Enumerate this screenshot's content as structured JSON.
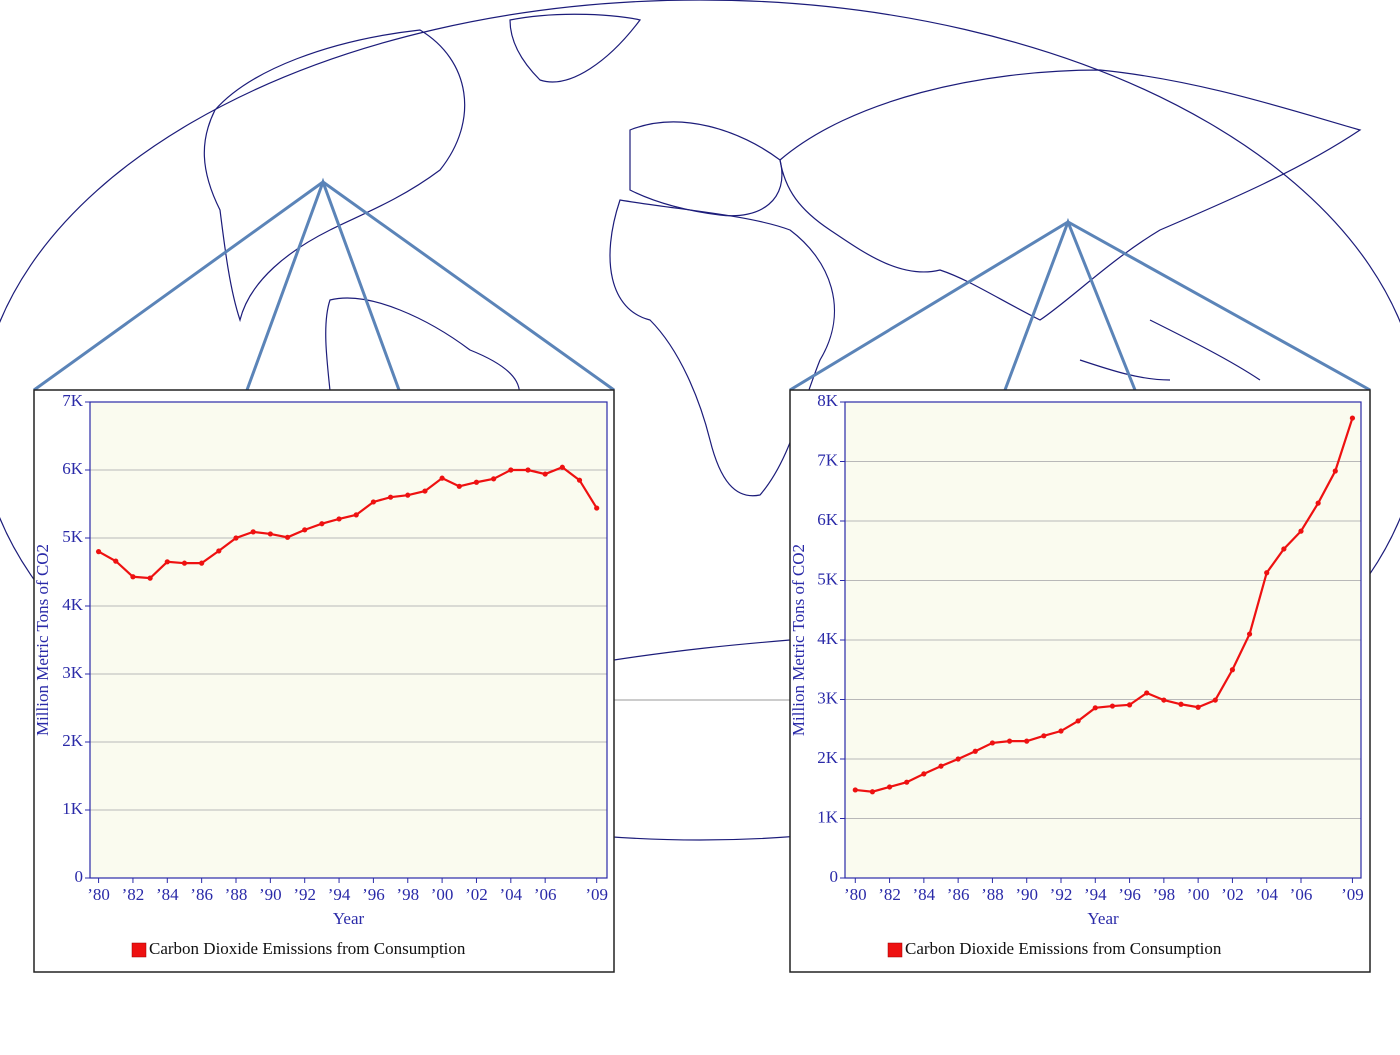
{
  "chart_data": [
    {
      "type": "line",
      "y_label": "Million Metric Tons of CO2",
      "x_label": "Year",
      "x": [
        1980,
        1981,
        1982,
        1983,
        1984,
        1985,
        1986,
        1987,
        1988,
        1989,
        1990,
        1991,
        1992,
        1993,
        1994,
        1995,
        1996,
        1997,
        1998,
        1999,
        2000,
        2001,
        2002,
        2003,
        2004,
        2005,
        2006,
        2007,
        2008,
        2009
      ],
      "series": [
        {
          "name": "Carbon Dioxide Emissions from Consumption",
          "color": "#ee1111",
          "values": [
            4800,
            4660,
            4430,
            4410,
            4650,
            4630,
            4630,
            4810,
            5000,
            5090,
            5060,
            5010,
            5120,
            5210,
            5280,
            5340,
            5530,
            5600,
            5630,
            5690,
            5880,
            5760,
            5820,
            5870,
            6000,
            6000,
            5940,
            6040,
            5850,
            5440
          ]
        }
      ],
      "xlim": [
        1979.5,
        2009.6
      ],
      "ylim": [
        0,
        7000
      ],
      "xticks": [
        {
          "value": 1980,
          "label": "’80"
        },
        {
          "value": 1982,
          "label": "’82"
        },
        {
          "value": 1984,
          "label": "’84"
        },
        {
          "value": 1986,
          "label": "’86"
        },
        {
          "value": 1988,
          "label": "’88"
        },
        {
          "value": 1990,
          "label": "’90"
        },
        {
          "value": 1992,
          "label": "’92"
        },
        {
          "value": 1994,
          "label": "’94"
        },
        {
          "value": 1996,
          "label": "’96"
        },
        {
          "value": 1998,
          "label": "’98"
        },
        {
          "value": 2000,
          "label": "’00"
        },
        {
          "value": 2002,
          "label": "’02"
        },
        {
          "value": 2004,
          "label": "’04"
        },
        {
          "value": 2006,
          "label": "’06"
        },
        {
          "value": 2009,
          "label": "’09"
        }
      ],
      "yticks": [
        0,
        {
          "value": 1000,
          "label": "1K"
        },
        {
          "value": 2000,
          "label": "2K"
        },
        {
          "value": 3000,
          "label": "3K"
        },
        {
          "value": 4000,
          "label": "4K"
        },
        {
          "value": 5000,
          "label": "5K"
        },
        {
          "value": 6000,
          "label": "6K"
        },
        {
          "value": 7000,
          "label": "7K"
        }
      ],
      "grid": true,
      "legend": "bottom"
    },
    {
      "type": "line",
      "y_label": "Million Metric Tons of CO2",
      "x_label": "Year",
      "x": [
        1980,
        1981,
        1982,
        1983,
        1984,
        1985,
        1986,
        1987,
        1988,
        1989,
        1990,
        1991,
        1992,
        1993,
        1994,
        1995,
        1996,
        1997,
        1998,
        1999,
        2000,
        2001,
        2002,
        2003,
        2004,
        2005,
        2006,
        2007,
        2008,
        2009
      ],
      "series": [
        {
          "name": "Carbon Dioxide Emissions from Consumption",
          "color": "#ee1111",
          "values": [
            1480,
            1450,
            1530,
            1610,
            1750,
            1880,
            2000,
            2130,
            2270,
            2300,
            2300,
            2390,
            2470,
            2640,
            2860,
            2890,
            2910,
            3110,
            2990,
            2920,
            2870,
            2990,
            3500,
            4100,
            5130,
            5530,
            5830,
            6300,
            6840,
            7730
          ]
        }
      ],
      "xlim": [
        1979.4,
        2009.5
      ],
      "ylim": [
        0,
        8000
      ],
      "xticks": [
        {
          "value": 1980,
          "label": "’80"
        },
        {
          "value": 1982,
          "label": "’82"
        },
        {
          "value": 1984,
          "label": "’84"
        },
        {
          "value": 1986,
          "label": "’86"
        },
        {
          "value": 1988,
          "label": "’88"
        },
        {
          "value": 1990,
          "label": "’90"
        },
        {
          "value": 1992,
          "label": "’92"
        },
        {
          "value": 1994,
          "label": "’94"
        },
        {
          "value": 1996,
          "label": "’96"
        },
        {
          "value": 1998,
          "label": "’98"
        },
        {
          "value": 2000,
          "label": "’00"
        },
        {
          "value": 2002,
          "label": "’02"
        },
        {
          "value": 2004,
          "label": "’04"
        },
        {
          "value": 2006,
          "label": "’06"
        },
        {
          "value": 2009,
          "label": "’09"
        }
      ],
      "yticks": [
        0,
        {
          "value": 1000,
          "label": "1K"
        },
        {
          "value": 2000,
          "label": "2K"
        },
        {
          "value": 3000,
          "label": "3K"
        },
        {
          "value": 4000,
          "label": "4K"
        },
        {
          "value": 5000,
          "label": "5K"
        },
        {
          "value": 6000,
          "label": "6K"
        },
        {
          "value": 7000,
          "label": "7K"
        },
        {
          "value": 8000,
          "label": "8K"
        }
      ],
      "grid": true,
      "legend": "bottom"
    }
  ]
}
